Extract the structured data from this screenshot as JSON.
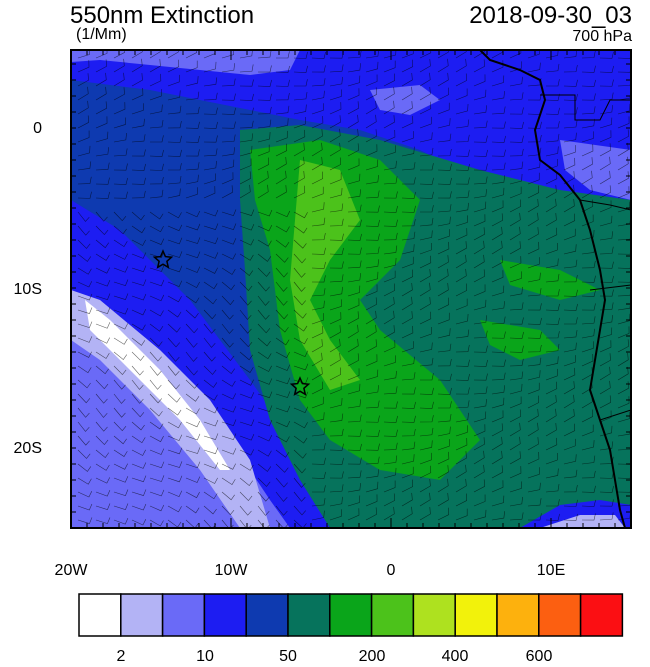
{
  "header": {
    "title": "550nm Extinction",
    "units": "(1/Mm)",
    "datetime": "2018-09-30_03",
    "level": "700 hPa"
  },
  "axes": {
    "lat_labels": [
      "0",
      "10S",
      "20S"
    ],
    "lon_labels": [
      "20W",
      "10W",
      "0",
      "10E"
    ]
  },
  "colorbar": {
    "colors": [
      "#ffffff",
      "#b3b3f5",
      "#6a6af7",
      "#1d1df2",
      "#0e3ab0",
      "#06735c",
      "#0aa51a",
      "#4cc21b",
      "#aee11f",
      "#f2f20b",
      "#fdb10d",
      "#fc5f11",
      "#fb0f13"
    ],
    "labels": [
      "2",
      "10",
      "50",
      "200",
      "400",
      "600"
    ]
  },
  "markers": [
    {
      "name": "star-marker-1",
      "shape": "star"
    },
    {
      "name": "star-marker-2",
      "shape": "star"
    }
  ]
}
